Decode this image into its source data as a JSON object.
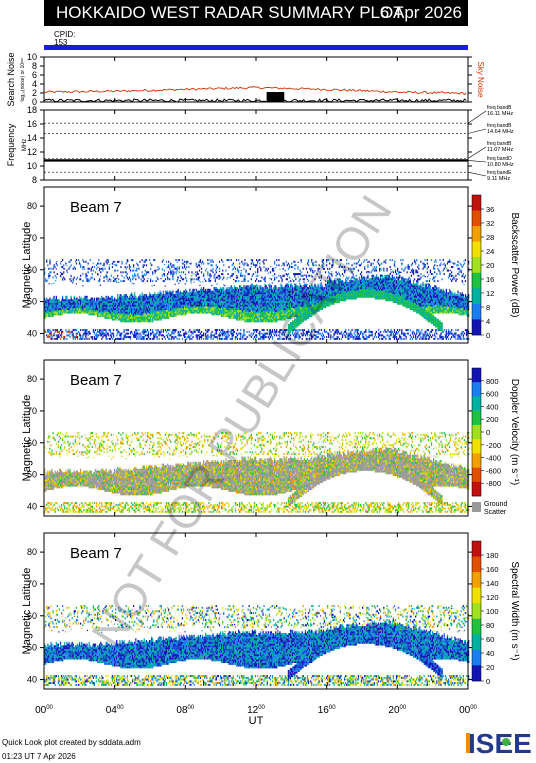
{
  "header": {
    "title": "HOKKAIDO WEST RADAR SUMMARY PLOT",
    "date": "6 Apr 2026",
    "cpid_label": "CPID:",
    "cpid_value": "153"
  },
  "colors": {
    "cpid_bar": "#1a1ae6",
    "noise_line": "#cc3300",
    "watermark": "#000000"
  },
  "watermark": "NOT FOR PUBLICATION",
  "footer": {
    "credit": "Quick Look plot created by sddata.adm",
    "timestamp": "01:23 UT  7 Apr 2026",
    "logo": "ISEE"
  },
  "chart_data": [
    {
      "type": "line",
      "title": "",
      "ylabel": "Search Noise",
      "ylabel_sub": "log₁₀(noise) or 10ᵖʷʳ",
      "right_label": "Sky Noise",
      "ylim": [
        0,
        10
      ],
      "yticks": [
        "0",
        "2",
        "4",
        "6",
        "8",
        "10"
      ],
      "series": [
        {
          "name": "Sky Noise",
          "x": [
            0,
            4,
            8,
            12,
            14,
            16,
            20,
            24
          ],
          "values": [
            2.2,
            2.4,
            2.8,
            3.2,
            3.0,
            2.8,
            2.2,
            1.9
          ]
        }
      ]
    },
    {
      "type": "line",
      "ylabel": "Frequency",
      "ylabel_sub": "MHz",
      "ylim": [
        8,
        18
      ],
      "yticks": [
        "8",
        "10",
        "12",
        "14",
        "16",
        "18"
      ],
      "freq_bands": [
        {
          "label": "freq bandB",
          "value": "16.11 MHz",
          "mhz": 16.11
        },
        {
          "label": "freq bandB",
          "value": "14.64 MHz",
          "mhz": 14.64
        },
        {
          "label": "freq bandB",
          "value": "11.07 MHz",
          "mhz": 11.07
        },
        {
          "label": "freq bandD",
          "value": "10.80 MHz",
          "mhz": 10.8
        },
        {
          "label": "freq bandE",
          "value": "9.11 MHz",
          "mhz": 9.11
        }
      ],
      "series": [
        {
          "x": [
            0,
            24
          ],
          "values": [
            10.8,
            10.8
          ]
        }
      ]
    },
    {
      "type": "heatmap",
      "beam_label": "Beam  7",
      "ylabel": "Magnetic Latitude",
      "ylim": [
        37,
        86
      ],
      "yticks": [
        "40",
        "50",
        "60",
        "70",
        "80"
      ],
      "colorbar_label": "Backscatter Power (dB)",
      "colorbar_ticks": [
        "0",
        "4",
        "8",
        "12",
        "16",
        "20",
        "24",
        "28",
        "32",
        "36"
      ],
      "colorbar_range": [
        0,
        40
      ],
      "palette": [
        "#1414b4",
        "#1a7df0",
        "#00b0a0",
        "#20c040",
        "#a0e020",
        "#f0e000",
        "#f0a000",
        "#e05000",
        "#c01010"
      ]
    },
    {
      "type": "heatmap",
      "beam_label": "Beam  7",
      "ylabel": "Magnetic Latitude",
      "ylim": [
        37,
        86
      ],
      "yticks": [
        "40",
        "50",
        "60",
        "70",
        "80"
      ],
      "colorbar_label": "Doppler Velocity (m s⁻¹)",
      "colorbar_ticks": [
        "800",
        "600",
        "400",
        "200",
        "0",
        "-200",
        "-400",
        "-600",
        "-800"
      ],
      "colorbar_range": [
        -1000,
        1000
      ],
      "ground_scatter_label": "Ground Scatter",
      "palette": [
        "#1414b4",
        "#1a7df0",
        "#00b0a0",
        "#20c040",
        "#a0e020",
        "#f0e000",
        "#f0a000",
        "#e05000",
        "#c01010"
      ]
    },
    {
      "type": "heatmap",
      "beam_label": "Beam  7",
      "ylabel": "Magnetic Latitude",
      "ylim": [
        37,
        86
      ],
      "yticks": [
        "40",
        "50",
        "60",
        "70",
        "80"
      ],
      "colorbar_label": "Spectral Width (m s⁻¹)",
      "colorbar_ticks": [
        "0",
        "20",
        "40",
        "60",
        "80",
        "100",
        "120",
        "140",
        "160",
        "180"
      ],
      "colorbar_range": [
        0,
        200
      ],
      "palette": [
        "#1414b4",
        "#1a7df0",
        "#00b0a0",
        "#20c040",
        "#a0e020",
        "#f0e000",
        "#f0a000",
        "#e05000",
        "#c01010"
      ]
    }
  ],
  "xaxis": {
    "label": "UT",
    "range": [
      0,
      24
    ],
    "ticks": [
      {
        "h": "00",
        "m": "00",
        "hour": 0
      },
      {
        "h": "04",
        "m": "00",
        "hour": 4
      },
      {
        "h": "08",
        "m": "00",
        "hour": 8
      },
      {
        "h": "12",
        "m": "00",
        "hour": 12
      },
      {
        "h": "16",
        "m": "00",
        "hour": 16
      },
      {
        "h": "20",
        "m": "00",
        "hour": 20
      },
      {
        "h": "00",
        "m": "00",
        "hour": 24
      }
    ]
  }
}
